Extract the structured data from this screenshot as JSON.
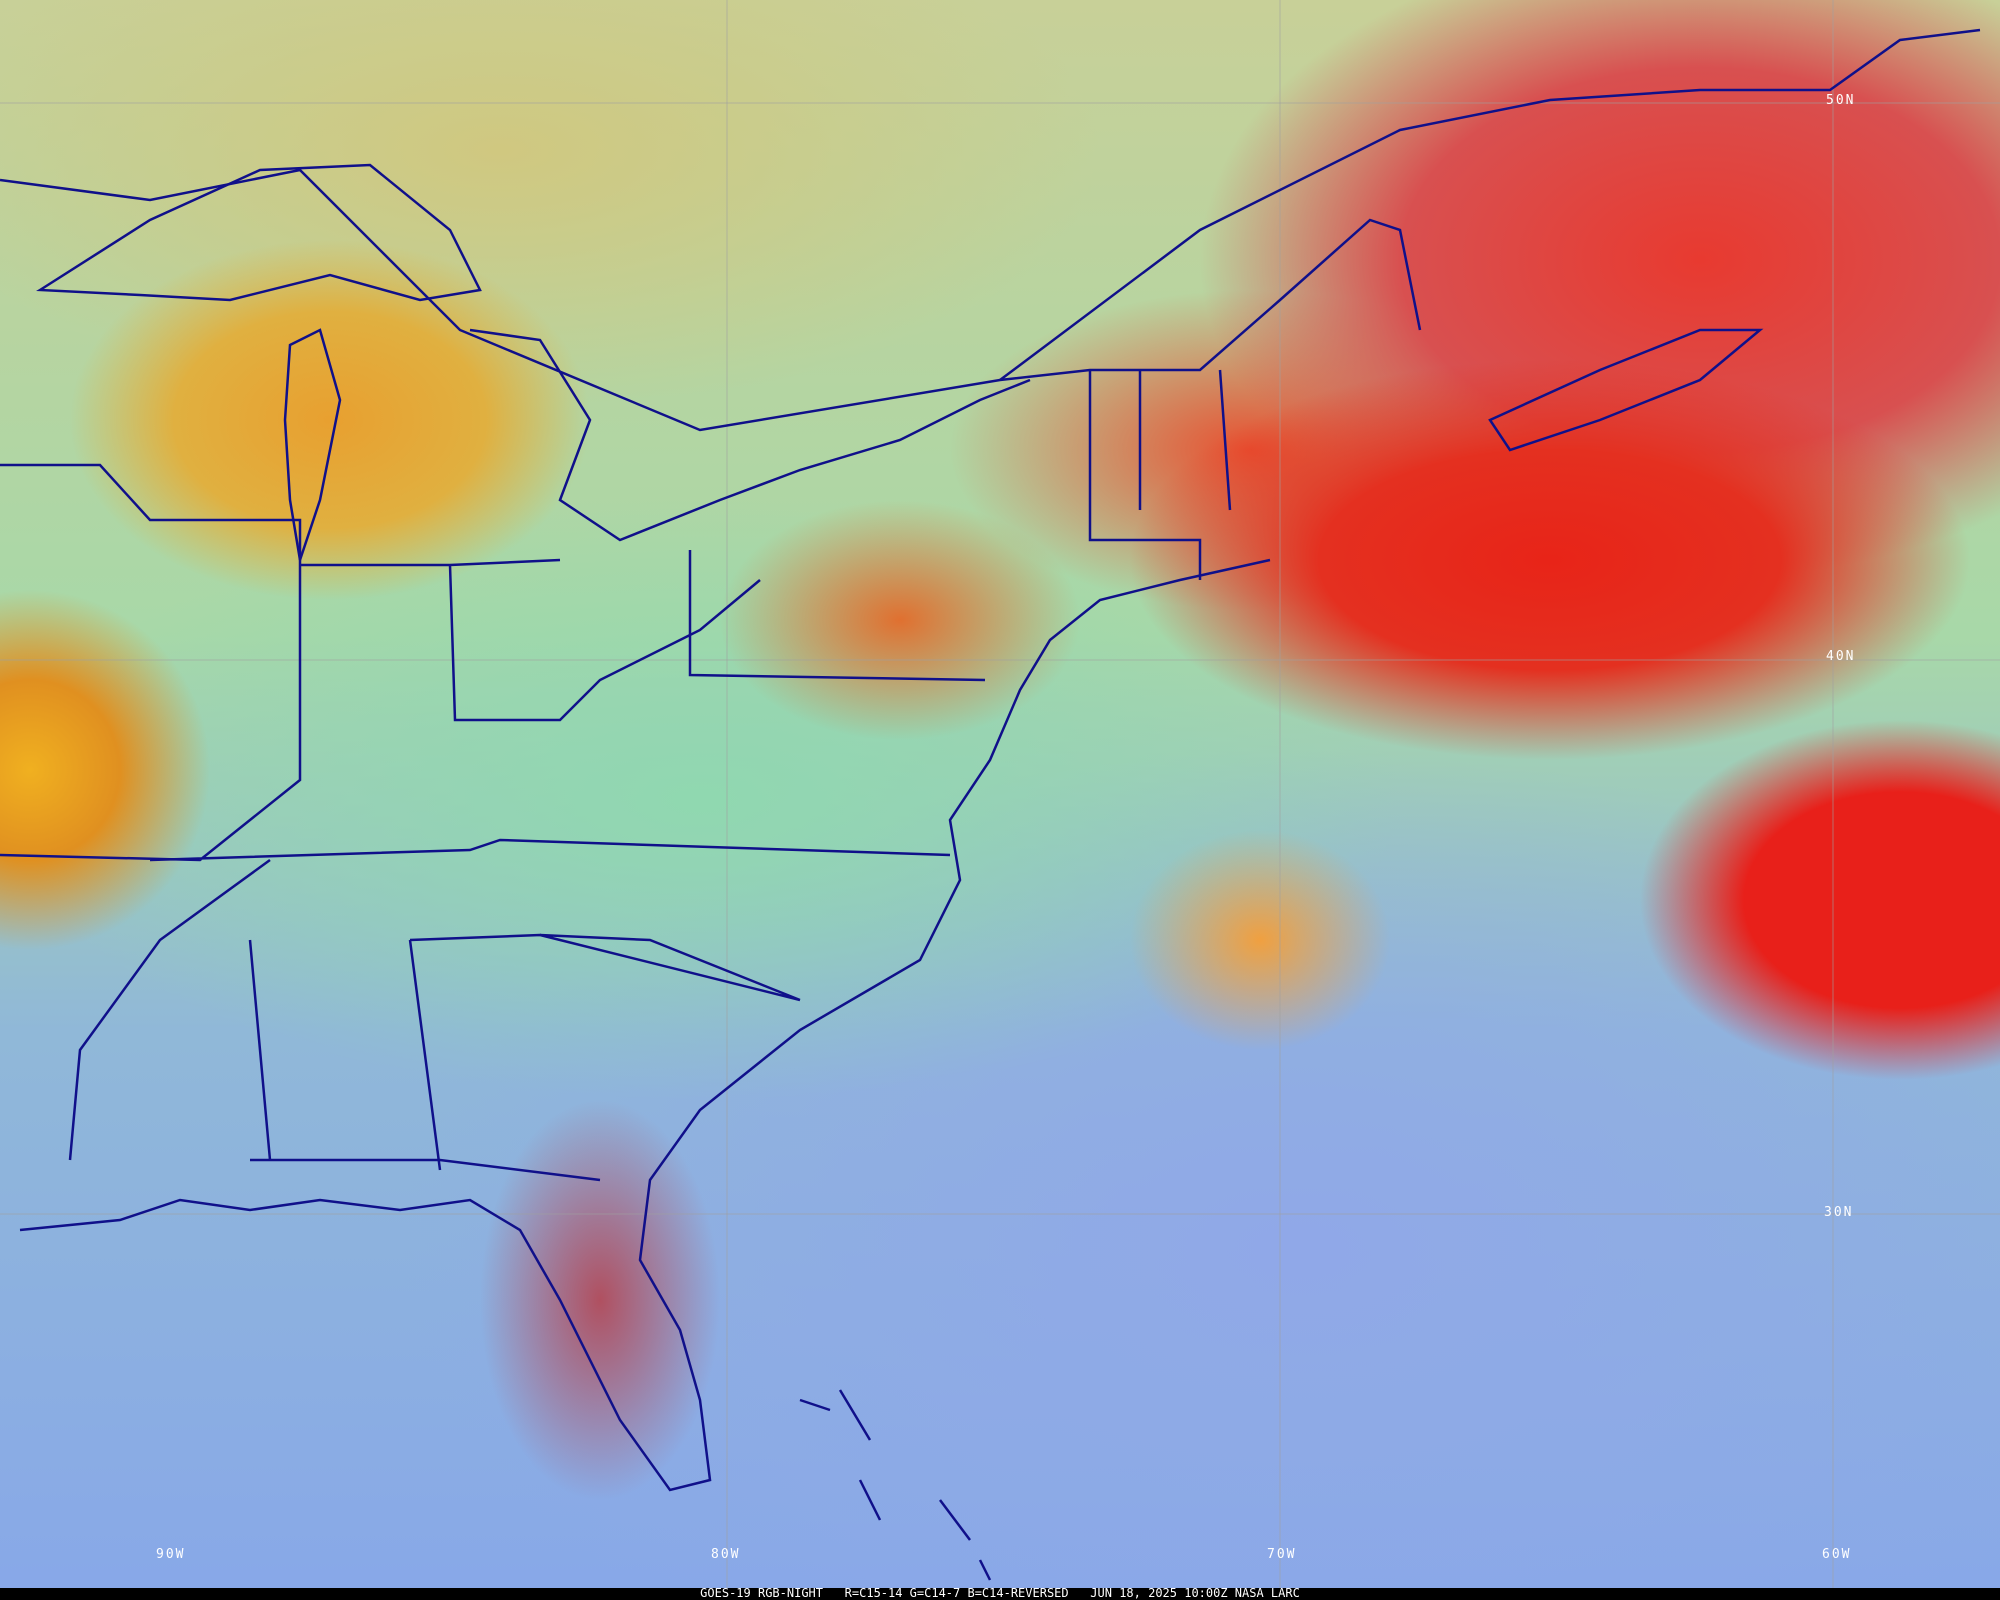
{
  "product": {
    "satellite": "GOES-19",
    "product_name": "RGB-NIGHT",
    "recipe": "R=C15-14 G=C14-7 B=C14-REVERSED",
    "datetime": "JUN 18, 2025 10:00Z",
    "credit": "NASA LARC",
    "caption": "GOES-19 RGB-NIGHT   R=C15-14 G=C14-7 B=C14-REVERSED   JUN 18, 2025 10:00Z NASA LARC"
  },
  "grid": {
    "latitudes": [
      "50N",
      "40N",
      "30N"
    ],
    "longitudes": [
      "90W",
      "80W",
      "70W",
      "60W"
    ]
  },
  "colors": {
    "boundaries": "#10108a",
    "gridlines": "#a0a0a0",
    "high_cloud": "#e8201a",
    "mid_cloud": "#f0a040",
    "clear_ocean": "#88a8e8",
    "low_cloud": "#90d8b0"
  }
}
